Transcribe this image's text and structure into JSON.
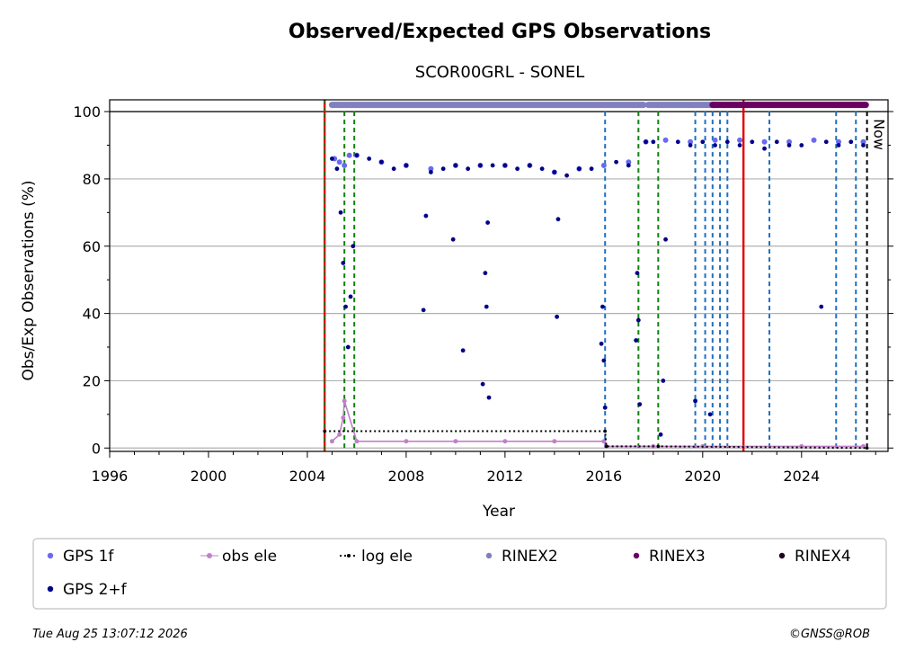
{
  "chart_data": {
    "type": "scatter",
    "title": "Observed/Expected GPS Observations",
    "subtitle": "SCOR00GRL - SONEL",
    "xlabel": "Year",
    "ylabel": "Obs/Exp Observations (%)",
    "xlim": [
      1996,
      2027.5
    ],
    "ylim": [
      -1,
      103.5
    ],
    "x_ticks": [
      1996,
      2000,
      2004,
      2008,
      2012,
      2016,
      2020,
      2024
    ],
    "y_ticks": [
      0,
      20,
      40,
      60,
      80,
      100
    ],
    "grid": "horizontal",
    "now_label": "Now",
    "now_x": 2026.65,
    "equipment_changes": {
      "receiver_changes": [
        2016.05,
        2019.7,
        2020.1,
        2020.4,
        2020.7,
        2021.0,
        2022.7,
        2025.4,
        2026.2
      ],
      "antenna_changes": [
        2005.5,
        2005.9,
        2017.4,
        2018.2
      ],
      "red_lines": [
        2004.7,
        2021.65
      ]
    },
    "series": [
      {
        "name": "GPS 1f",
        "color": "#6a6af0",
        "points": [
          [
            2005.1,
            86
          ],
          [
            2005.3,
            85
          ],
          [
            2005.5,
            84
          ],
          [
            2005.7,
            87
          ],
          [
            2006.0,
            87
          ],
          [
            2007.0,
            85
          ],
          [
            2008.0,
            84
          ],
          [
            2009.0,
            83
          ],
          [
            2010.0,
            84
          ],
          [
            2011.0,
            84
          ],
          [
            2012.0,
            84
          ],
          [
            2013.0,
            84
          ],
          [
            2014.0,
            82
          ],
          [
            2015.0,
            83
          ],
          [
            2016.0,
            84
          ],
          [
            2017.0,
            85
          ],
          [
            2017.7,
            91
          ],
          [
            2018.5,
            91.5
          ],
          [
            2019.5,
            91
          ],
          [
            2020.5,
            91.5
          ],
          [
            2021.5,
            91.5
          ],
          [
            2022.5,
            91
          ],
          [
            2023.5,
            91
          ],
          [
            2024.5,
            91.5
          ],
          [
            2025.5,
            91
          ],
          [
            2026.5,
            91
          ]
        ]
      },
      {
        "name": "GPS 2+f",
        "color": "#00008b",
        "points": [
          [
            2005.0,
            86
          ],
          [
            2005.2,
            83
          ],
          [
            2005.35,
            70
          ],
          [
            2005.45,
            55
          ],
          [
            2005.55,
            42
          ],
          [
            2005.65,
            30
          ],
          [
            2005.75,
            45
          ],
          [
            2005.85,
            60
          ],
          [
            2006.0,
            87
          ],
          [
            2006.5,
            86
          ],
          [
            2007.0,
            85
          ],
          [
            2007.5,
            83
          ],
          [
            2008.0,
            84
          ],
          [
            2008.7,
            41
          ],
          [
            2008.8,
            69
          ],
          [
            2009.0,
            82
          ],
          [
            2009.5,
            83
          ],
          [
            2009.9,
            62
          ],
          [
            2010.0,
            84
          ],
          [
            2010.3,
            29
          ],
          [
            2010.5,
            83
          ],
          [
            2011.0,
            84
          ],
          [
            2011.1,
            19
          ],
          [
            2011.2,
            52
          ],
          [
            2011.25,
            42
          ],
          [
            2011.3,
            67
          ],
          [
            2011.35,
            15
          ],
          [
            2011.5,
            84
          ],
          [
            2012.0,
            84
          ],
          [
            2012.5,
            83
          ],
          [
            2013.0,
            84
          ],
          [
            2013.5,
            83
          ],
          [
            2014.0,
            82
          ],
          [
            2014.1,
            39
          ],
          [
            2014.15,
            68
          ],
          [
            2014.5,
            81
          ],
          [
            2015.0,
            83
          ],
          [
            2015.5,
            83
          ],
          [
            2015.9,
            31
          ],
          [
            2015.95,
            42
          ],
          [
            2016.0,
            26
          ],
          [
            2016.05,
            12
          ],
          [
            2016.5,
            85
          ],
          [
            2017.0,
            84
          ],
          [
            2017.3,
            32
          ],
          [
            2017.35,
            52
          ],
          [
            2017.4,
            38
          ],
          [
            2017.45,
            13
          ],
          [
            2017.7,
            91
          ],
          [
            2018.0,
            91
          ],
          [
            2018.3,
            4
          ],
          [
            2018.4,
            20
          ],
          [
            2018.5,
            62
          ],
          [
            2019.0,
            91
          ],
          [
            2019.5,
            90
          ],
          [
            2019.7,
            14
          ],
          [
            2020.0,
            91
          ],
          [
            2020.3,
            10
          ],
          [
            2020.5,
            90
          ],
          [
            2021.0,
            91
          ],
          [
            2021.5,
            90
          ],
          [
            2022.0,
            91
          ],
          [
            2022.5,
            89
          ],
          [
            2023.0,
            91
          ],
          [
            2023.5,
            90
          ],
          [
            2024.0,
            90
          ],
          [
            2024.8,
            42
          ],
          [
            2025.0,
            91
          ],
          [
            2025.5,
            90
          ],
          [
            2026.0,
            91
          ],
          [
            2026.5,
            90
          ]
        ]
      },
      {
        "name": "obs ele",
        "color": "#c080c8",
        "points": [
          [
            2005.0,
            2
          ],
          [
            2005.3,
            4
          ],
          [
            2005.45,
            9
          ],
          [
            2005.5,
            14
          ],
          [
            2006.0,
            2
          ],
          [
            2008.0,
            2
          ],
          [
            2010.0,
            2
          ],
          [
            2012.0,
            2
          ],
          [
            2014.0,
            2
          ],
          [
            2016.0,
            2
          ],
          [
            2016.1,
            0.5
          ],
          [
            2018.0,
            0.5
          ],
          [
            2020.0,
            0.5
          ],
          [
            2024.0,
            0.5
          ],
          [
            2026.5,
            0.5
          ]
        ]
      },
      {
        "name": "log ele",
        "color": "#000000",
        "points": [
          [
            2004.7,
            5
          ],
          [
            2016.05,
            5
          ],
          [
            2016.1,
            0.5
          ],
          [
            2018.2,
            0.5
          ],
          [
            2026.65,
            0
          ]
        ]
      },
      {
        "name": "RINEX2",
        "color": "#8080c0",
        "intervals": [
          [
            2005.0,
            2017.6
          ],
          [
            2017.8,
            2020.5
          ]
        ],
        "y": 102
      },
      {
        "name": "RINEX3",
        "color": "#6a0060",
        "intervals": [
          [
            2020.4,
            2026.6
          ]
        ],
        "y": 102
      },
      {
        "name": "RINEX4",
        "color": "#200020",
        "intervals": [],
        "y": 102
      }
    ],
    "legend": {
      "placement": "bottom",
      "entries": [
        "GPS 1f",
        "obs ele",
        "log ele",
        "RINEX2",
        "RINEX3",
        "RINEX4",
        "GPS 2+f"
      ]
    }
  },
  "footer": {
    "timestamp": "Tue Aug 25 13:07:12 2026",
    "credit": "©GNSS@ROB"
  }
}
